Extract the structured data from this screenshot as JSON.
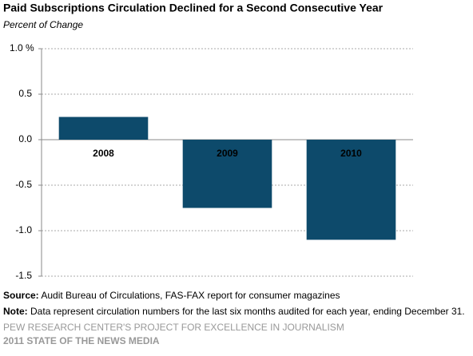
{
  "chart_data": {
    "type": "bar",
    "title": "Paid Subscriptions Circulation Declined for a Second Consecutive Year",
    "subtitle": "Percent of Change",
    "categories": [
      "2008",
      "2009",
      "2010"
    ],
    "values": [
      0.25,
      -0.75,
      -1.1
    ],
    "color": "#0d4a6b",
    "ylim": [
      -1.5,
      1.0
    ],
    "yticks": [
      {
        "value": 1.0,
        "label": "1.0 %"
      },
      0.5,
      {
        "value": 0,
        "label": "0.0"
      },
      -0.5,
      {
        "value": -1.0,
        "label": "-1.0"
      },
      -1.5
    ],
    "grid": true,
    "source": {
      "label": "Source:",
      "text": "Audit Bureau of Circulations, FAS-FAX report for consumer magazines"
    },
    "note": {
      "label": "Note:",
      "text": "Data represent circulation numbers for the last six months audited for each year, ending December 31."
    },
    "footer": [
      "PEW RESEARCH CENTER'S PROJECT FOR EXCELLENCE IN JOURNALISM",
      "2011 STATE OF THE NEWS MEDIA"
    ]
  }
}
